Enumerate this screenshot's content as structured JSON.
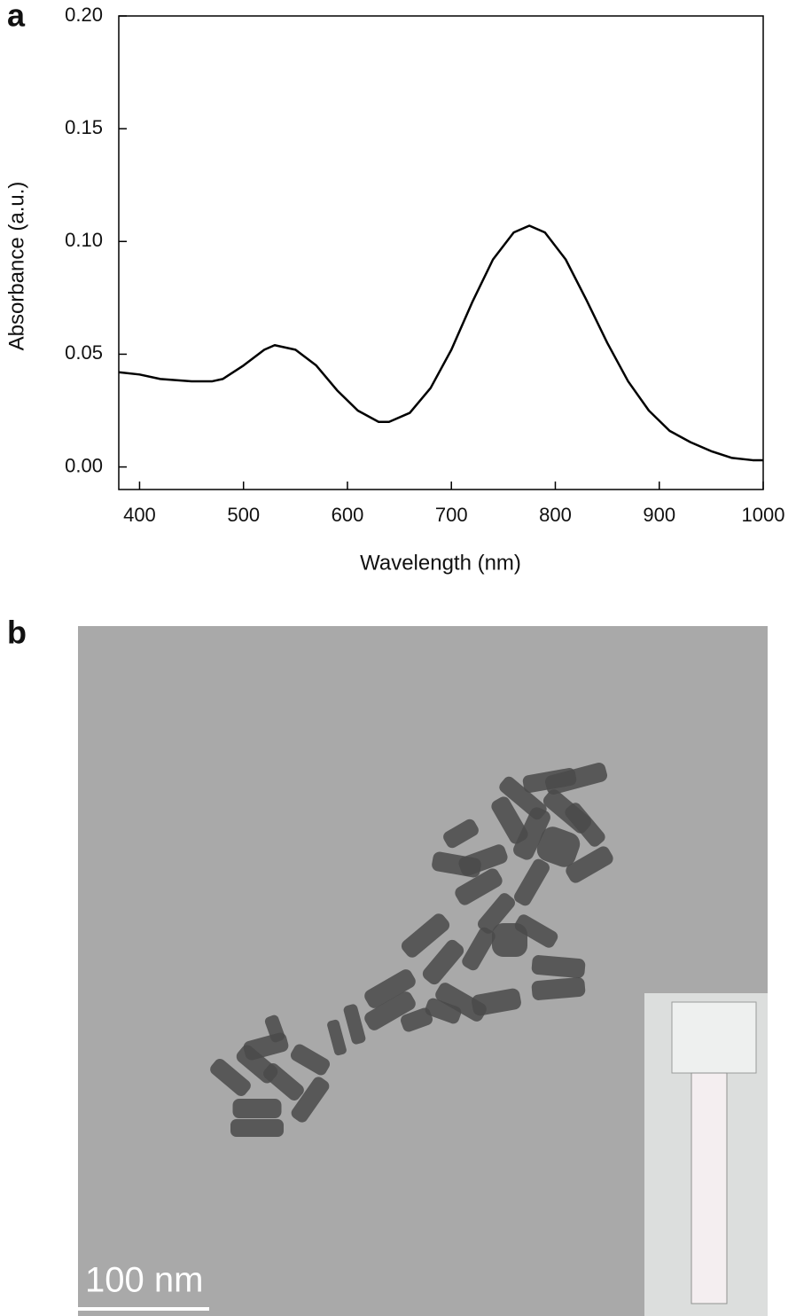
{
  "chart_data": {
    "type": "line",
    "panel_label": "a",
    "x_label": "Wavelength (nm)",
    "y_label": "Absorbance (a.u.)",
    "x": [
      380,
      400,
      420,
      450,
      470,
      480,
      500,
      520,
      530,
      550,
      570,
      590,
      610,
      630,
      640,
      660,
      680,
      700,
      720,
      740,
      760,
      775,
      790,
      810,
      830,
      850,
      870,
      890,
      910,
      930,
      950,
      970,
      990,
      1000
    ],
    "series": [
      {
        "color": "#000000",
        "values": [
          0.042,
          0.041,
          0.039,
          0.038,
          0.038,
          0.039,
          0.045,
          0.052,
          0.054,
          0.052,
          0.045,
          0.034,
          0.025,
          0.02,
          0.02,
          0.024,
          0.035,
          0.052,
          0.073,
          0.092,
          0.104,
          0.107,
          0.104,
          0.092,
          0.074,
          0.055,
          0.038,
          0.025,
          0.016,
          0.011,
          0.007,
          0.004,
          0.003,
          0.003
        ]
      }
    ],
    "xlim": [
      380,
      1000
    ],
    "xticks": [
      400,
      500,
      600,
      700,
      800,
      900,
      1000
    ],
    "ylim": [
      -0.01,
      0.2
    ],
    "yticks": [
      {
        "value": 0,
        "label": "0.00"
      },
      {
        "value": 0.05,
        "label": "0.05"
      },
      {
        "value": 0.1,
        "label": "0.10"
      },
      {
        "value": 0.15,
        "label": "0.15"
      },
      {
        "value": 0.2,
        "label": "0.20"
      }
    ],
    "grid": false
  },
  "image_panel": {
    "label": "b",
    "scale_bar": "100 nm"
  }
}
